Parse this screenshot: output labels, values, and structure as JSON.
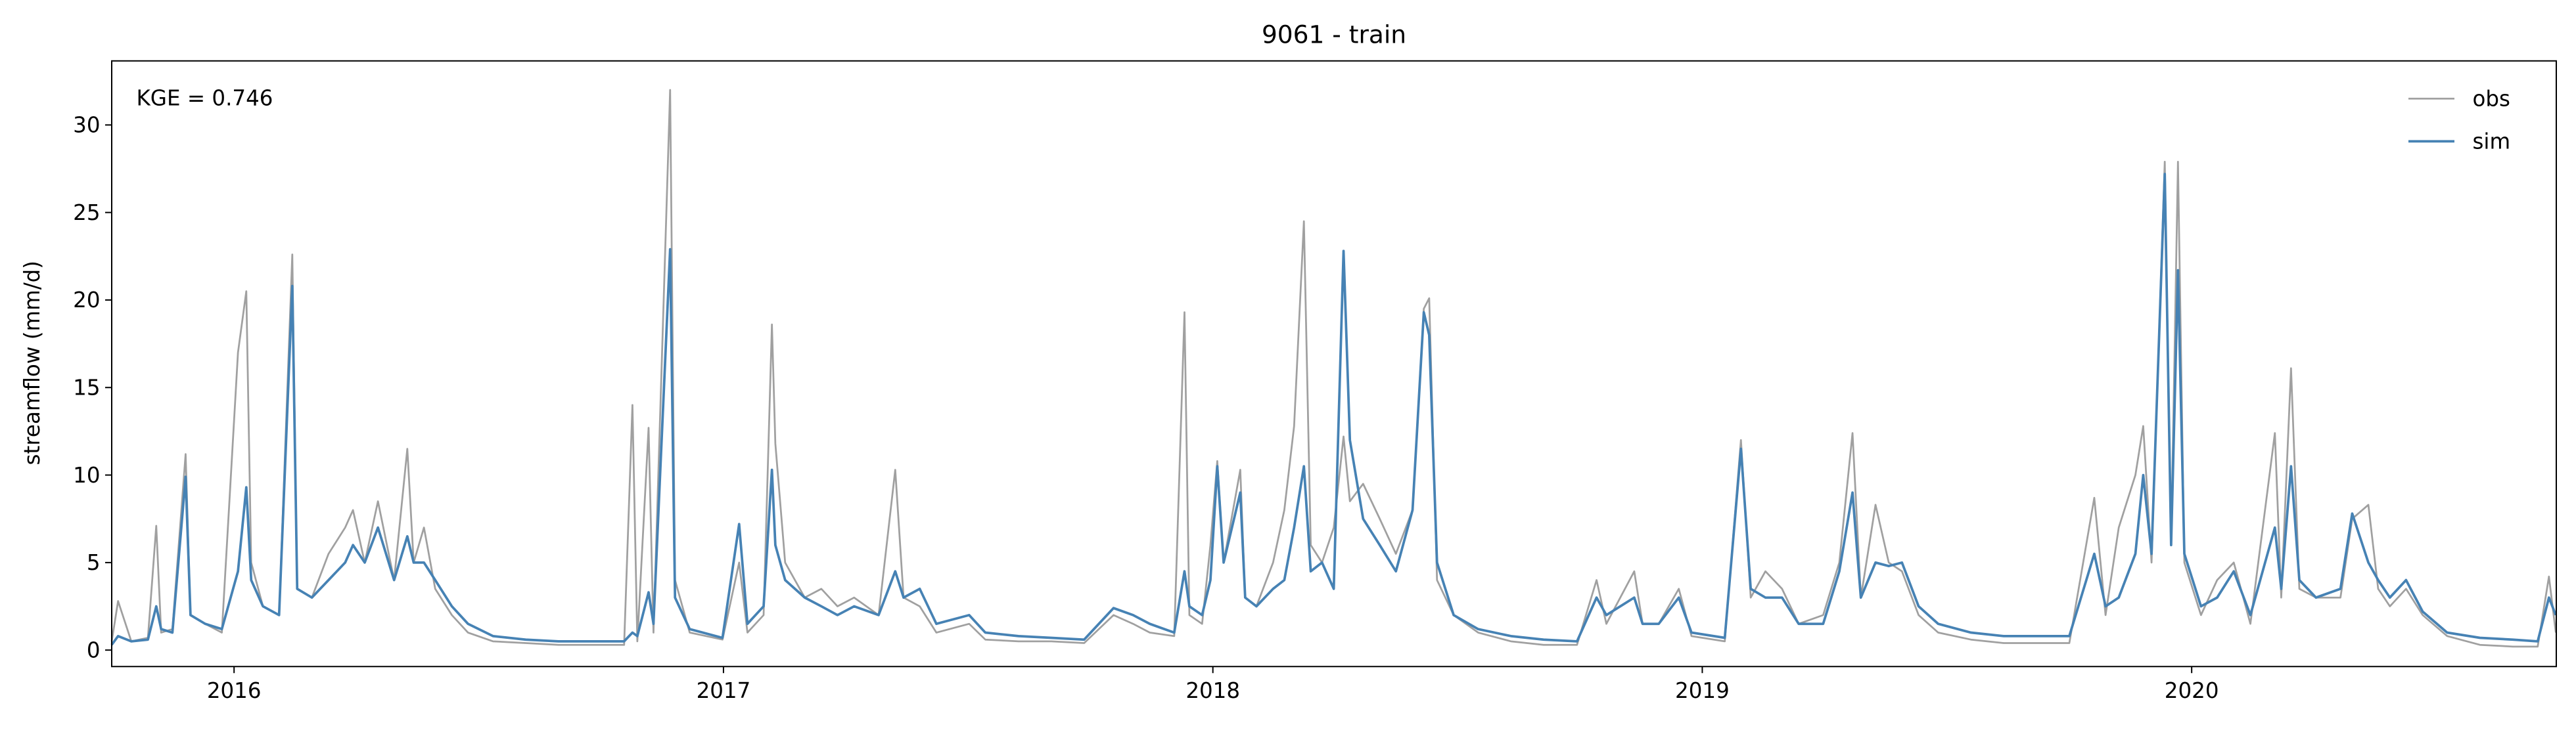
{
  "chart_data": {
    "type": "line",
    "title": "9061 - train",
    "ylabel": "streamflow (mm/d)",
    "annotation": "KGE = 0.746",
    "legend": "upper right",
    "xlim": [
      2015.75,
      2020.745
    ],
    "xticks": [
      2016,
      2017,
      2018,
      2019,
      2020
    ],
    "ylim": [
      -0.94,
      33.66
    ],
    "yticks": [
      0,
      5,
      10,
      15,
      20,
      25,
      30
    ],
    "x": [
      2015.75,
      2015.763,
      2015.79,
      2015.824,
      2015.841,
      2015.851,
      2015.874,
      2015.901,
      2015.911,
      2015.941,
      2015.975,
      2016.008,
      2016.025,
      2016.035,
      2016.059,
      2016.092,
      2016.119,
      2016.129,
      2016.159,
      2016.193,
      2016.227,
      2016.243,
      2016.267,
      2016.294,
      2016.327,
      2016.354,
      2016.367,
      2016.388,
      2016.411,
      2016.445,
      2016.478,
      2016.529,
      2016.596,
      2016.663,
      2016.73,
      2016.797,
      2016.814,
      2016.824,
      2016.847,
      2016.857,
      2016.891,
      2016.901,
      2016.931,
      2016.998,
      2017.032,
      2017.049,
      2017.082,
      2017.099,
      2017.106,
      2017.126,
      2017.166,
      2017.2,
      2017.233,
      2017.267,
      2017.317,
      2017.351,
      2017.368,
      2017.401,
      2017.435,
      2017.502,
      2017.535,
      2017.603,
      2017.67,
      2017.737,
      2017.797,
      2017.837,
      2017.871,
      2017.921,
      2017.942,
      2017.952,
      2017.978,
      2017.995,
      2018.009,
      2018.022,
      2018.056,
      2018.066,
      2018.089,
      2018.123,
      2018.146,
      2018.166,
      2018.186,
      2018.2,
      2018.223,
      2018.247,
      2018.267,
      2018.28,
      2018.307,
      2018.341,
      2018.374,
      2018.408,
      2018.431,
      2018.442,
      2018.458,
      2018.492,
      2018.542,
      2018.609,
      2018.676,
      2018.744,
      2018.784,
      2018.804,
      2018.861,
      2018.878,
      2018.911,
      2018.952,
      2018.978,
      2019.046,
      2019.079,
      2019.099,
      2019.129,
      2019.163,
      2019.197,
      2019.247,
      2019.28,
      2019.307,
      2019.324,
      2019.354,
      2019.381,
      2019.408,
      2019.442,
      2019.482,
      2019.549,
      2019.616,
      2019.683,
      2019.75,
      2019.801,
      2019.824,
      2019.851,
      2019.885,
      2019.901,
      2019.918,
      2019.945,
      2019.958,
      2019.972,
      2019.985,
      2020.019,
      2020.052,
      2020.086,
      2020.12,
      2020.17,
      2020.183,
      2020.203,
      2020.22,
      2020.254,
      2020.304,
      2020.328,
      2020.361,
      2020.381,
      2020.405,
      2020.438,
      2020.472,
      2020.522,
      2020.589,
      2020.656,
      2020.707,
      2020.73,
      2020.744
    ],
    "series": [
      {
        "name": "obs",
        "color": "#a0a0a0",
        "values": [
          0.5,
          2.8,
          0.5,
          0.7,
          7.1,
          1.0,
          1.2,
          11.2,
          2.0,
          1.5,
          1.0,
          17.0,
          20.5,
          5.0,
          2.5,
          2.0,
          22.6,
          3.5,
          3.0,
          5.5,
          7.0,
          8.0,
          5.0,
          8.5,
          4.0,
          11.5,
          5.0,
          7.0,
          3.5,
          2.0,
          1.0,
          0.5,
          0.4,
          0.3,
          0.3,
          0.3,
          14.0,
          0.5,
          12.7,
          1.0,
          32.0,
          4.0,
          1.0,
          0.6,
          5.0,
          1.0,
          2.0,
          18.6,
          11.8,
          5.0,
          3.0,
          3.5,
          2.5,
          3.0,
          2.0,
          10.3,
          3.0,
          2.5,
          1.0,
          1.5,
          0.6,
          0.5,
          0.5,
          0.4,
          2.0,
          1.5,
          1.0,
          0.8,
          19.3,
          2.0,
          1.5,
          6.0,
          10.8,
          5.0,
          10.3,
          3.0,
          2.5,
          5.0,
          8.0,
          12.8,
          24.5,
          6.0,
          5.0,
          7.0,
          12.2,
          8.5,
          9.5,
          7.5,
          5.5,
          8.0,
          19.5,
          20.1,
          4.0,
          2.0,
          1.0,
          0.5,
          0.3,
          0.3,
          4.0,
          1.5,
          4.5,
          1.5,
          1.5,
          3.5,
          0.8,
          0.5,
          12.0,
          3.0,
          4.5,
          3.5,
          1.5,
          2.0,
          5.0,
          12.4,
          3.0,
          8.3,
          5.0,
          4.5,
          2.0,
          1.0,
          0.6,
          0.4,
          0.4,
          0.4,
          8.7,
          2.0,
          7.0,
          10.0,
          12.8,
          5.0,
          27.9,
          6.0,
          27.9,
          5.0,
          2.0,
          4.0,
          5.0,
          1.5,
          12.4,
          3.0,
          16.1,
          3.5,
          3.0,
          3.0,
          7.5,
          8.3,
          3.5,
          2.5,
          3.5,
          2.0,
          0.8,
          0.3,
          0.2,
          0.2,
          4.2,
          1.0
        ]
      },
      {
        "name": "sim",
        "color": "#4682b4",
        "values": [
          0.3,
          0.8,
          0.5,
          0.6,
          2.5,
          1.2,
          1.0,
          9.9,
          2.0,
          1.5,
          1.2,
          4.5,
          9.3,
          4.0,
          2.5,
          2.0,
          20.8,
          3.5,
          3.0,
          4.0,
          5.0,
          6.0,
          5.0,
          7.0,
          4.0,
          6.5,
          5.0,
          5.0,
          4.0,
          2.5,
          1.5,
          0.8,
          0.6,
          0.5,
          0.5,
          0.5,
          1.0,
          0.8,
          3.3,
          1.5,
          22.9,
          3.0,
          1.2,
          0.7,
          7.2,
          1.5,
          2.5,
          10.3,
          6.0,
          4.0,
          3.0,
          2.5,
          2.0,
          2.5,
          2.0,
          4.5,
          3.0,
          3.5,
          1.5,
          2.0,
          1.0,
          0.8,
          0.7,
          0.6,
          2.4,
          2.0,
          1.5,
          1.0,
          4.5,
          2.5,
          2.0,
          4.0,
          10.5,
          5.0,
          9.0,
          3.0,
          2.5,
          3.5,
          4.0,
          7.0,
          10.5,
          4.5,
          5.0,
          3.5,
          22.8,
          12.0,
          7.5,
          6.0,
          4.5,
          8.0,
          19.3,
          18.0,
          5.0,
          2.0,
          1.2,
          0.8,
          0.6,
          0.5,
          3.0,
          2.0,
          3.0,
          1.5,
          1.5,
          3.0,
          1.0,
          0.7,
          11.5,
          3.5,
          3.0,
          3.0,
          1.5,
          1.5,
          4.5,
          9.0,
          3.0,
          5.0,
          4.8,
          5.0,
          2.5,
          1.5,
          1.0,
          0.8,
          0.8,
          0.8,
          5.5,
          2.5,
          3.0,
          5.5,
          10.0,
          5.5,
          27.2,
          6.0,
          21.7,
          5.5,
          2.5,
          3.0,
          4.5,
          2.0,
          7.0,
          3.5,
          10.5,
          4.0,
          3.0,
          3.5,
          7.8,
          5.0,
          4.0,
          3.0,
          4.0,
          2.2,
          1.0,
          0.7,
          0.6,
          0.5,
          3.0,
          2.0
        ]
      }
    ]
  }
}
